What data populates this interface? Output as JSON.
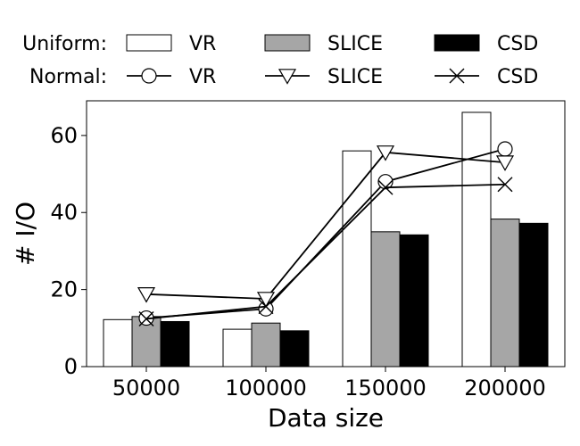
{
  "chart_data": {
    "type": "bar",
    "xlabel": "Data size",
    "ylabel": "# I/O",
    "categories": [
      "50000",
      "100000",
      "150000",
      "200000"
    ],
    "ylim": [
      0,
      69
    ],
    "yticks": [
      "0",
      "20",
      "40",
      "60"
    ],
    "legend": {
      "placement": "top",
      "groups": [
        {
          "title": "Uniform:",
          "entries": [
            "VR",
            "SLICE",
            "CSD"
          ]
        },
        {
          "title": "Normal:",
          "entries": [
            "VR",
            "SLICE",
            "CSD"
          ]
        }
      ]
    },
    "bar_series": [
      {
        "name": "VR",
        "group": "Uniform",
        "color": "#ffffff",
        "values": [
          12.2,
          9.7,
          56.0,
          66.0
        ]
      },
      {
        "name": "SLICE",
        "group": "Uniform",
        "color": "#a6a6a6",
        "values": [
          13.0,
          11.3,
          35.0,
          38.3
        ]
      },
      {
        "name": "CSD",
        "group": "Uniform",
        "color": "#000000",
        "values": [
          11.7,
          9.3,
          34.2,
          37.2
        ]
      }
    ],
    "line_series": [
      {
        "name": "VR",
        "group": "Normal",
        "marker": "circle",
        "values": [
          12.6,
          15.0,
          48.0,
          56.5
        ]
      },
      {
        "name": "SLICE",
        "group": "Normal",
        "marker": "triangle-down",
        "values": [
          18.8,
          17.6,
          55.6,
          53.0
        ]
      },
      {
        "name": "CSD",
        "group": "Normal",
        "marker": "x",
        "values": [
          12.4,
          15.6,
          46.5,
          47.3
        ]
      }
    ],
    "grid": false
  }
}
